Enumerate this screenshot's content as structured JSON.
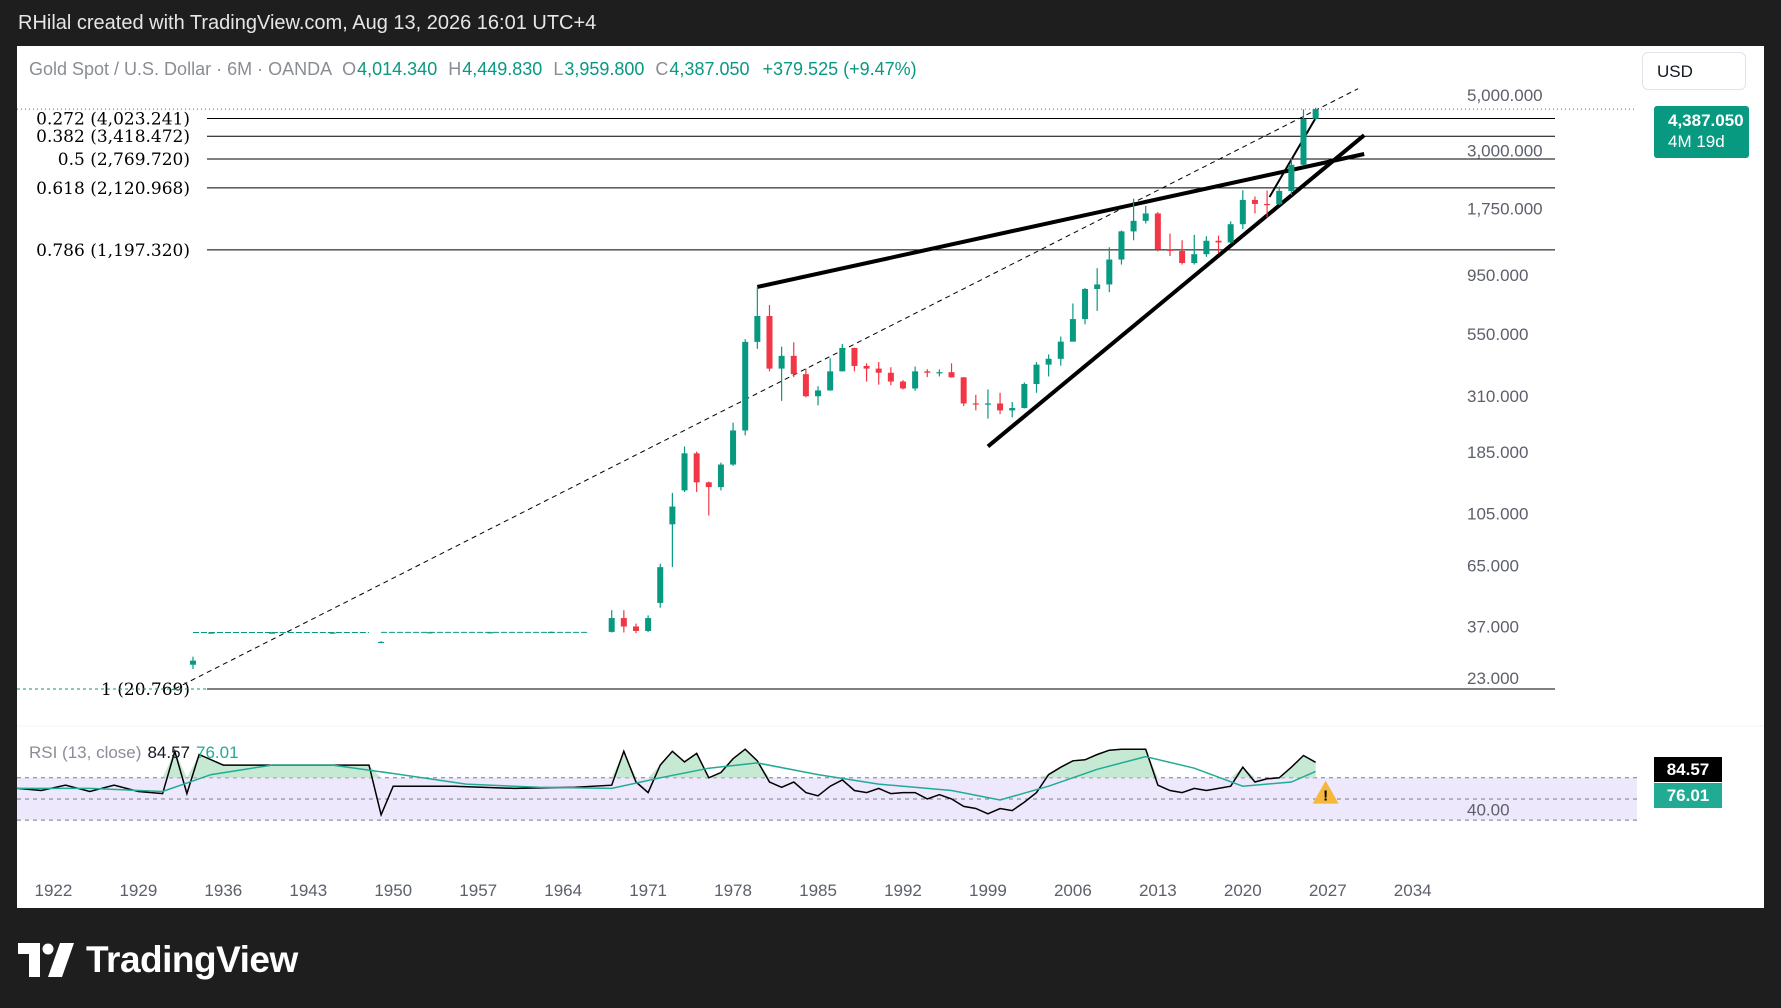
{
  "header": {
    "credit": "RHilal created with TradingView.com, Aug 13, 2026 16:01 UTC+4"
  },
  "brand": {
    "name": "TradingView"
  },
  "legend": {
    "symbol": "Gold Spot / U.S. Dollar · 6M · OANDA",
    "o_label": "O",
    "o_value": "4,014.340",
    "h_label": "H",
    "h_value": "4,449.830",
    "l_label": "L",
    "l_value": "3,959.800",
    "c_label": "C",
    "c_value": "4,387.050",
    "change": "+379.525 (+9.47%)"
  },
  "currency": "USD",
  "price_tag": {
    "price": "4,387.050",
    "countdown": "4M 19d"
  },
  "rsi": {
    "label": "RSI (13, close)",
    "value": "84.57",
    "ma_value": "76.01"
  },
  "colors": {
    "up": "#089981",
    "down": "#f23645",
    "rsi": "#000000",
    "rsi_ma": "#22ab94",
    "rsi_band": "#ede8fb",
    "warning": "#f5b83d"
  },
  "icons": {
    "warning": "warning-icon"
  },
  "chart_data": [
    {
      "type": "candlestick",
      "title": "Gold Spot / U.S. Dollar · 6M · OANDA",
      "y_scale": "log",
      "y_ticks": [
        "23.000",
        "37.000",
        "65.000",
        "105.000",
        "185.000",
        "310.000",
        "550.000",
        "950.000",
        "1,750.000",
        "3,000.000",
        "5,000.000"
      ],
      "y_tick_values": [
        23,
        37,
        65,
        105,
        185,
        310,
        550,
        950,
        1750,
        3000,
        5000
      ],
      "ylim": [
        15,
        5500
      ],
      "x_ticks": [
        "1922",
        "1929",
        "1936",
        "1943",
        "1950",
        "1957",
        "1964",
        "1971",
        "1978",
        "1985",
        "1992",
        "1999",
        "2006",
        "2013",
        "2020",
        "2027",
        "2034"
      ],
      "xlim": [
        1919,
        2036
      ],
      "fib_levels": [
        {
          "ratio": "0.272",
          "price": 4023.241,
          "label": "0.272 (4,023.241)"
        },
        {
          "ratio": "0.382",
          "price": 3418.472,
          "label": "0.382 (3,418.472)"
        },
        {
          "ratio": "0.5",
          "price": 2769.72,
          "label": "0.5 (2,769.720)"
        },
        {
          "ratio": "0.618",
          "price": 2120.968,
          "label": "0.618 (2,120.968)"
        },
        {
          "ratio": "0.786",
          "price": 1197.32,
          "label": "0.786 (1,197.320)"
        },
        {
          "ratio": "1",
          "price": 20.769,
          "label": "1 (20.769)"
        }
      ],
      "trendlines": [
        {
          "name": "upper",
          "from": [
            1980.0,
            850
          ],
          "to": [
            2030.0,
            2900
          ]
        },
        {
          "name": "lower",
          "from": [
            1999.0,
            195
          ],
          "to": [
            2030.0,
            3450
          ]
        },
        {
          "name": "dashed-channel",
          "from": [
            1932.0,
            20.8
          ],
          "to": [
            2029.5,
            5300
          ]
        },
        {
          "name": "short-rally",
          "from": [
            2022.2,
            1950
          ],
          "to": [
            2026.2,
            4200
          ]
        }
      ],
      "current_close": 4387.05,
      "candles": [
        {
          "x": 1932.0,
          "o": 20.7,
          "h": 20.9,
          "l": 20.6,
          "c": 20.8
        },
        {
          "x": 1933.5,
          "o": 26,
          "h": 28,
          "l": 25,
          "c": 27
        },
        {
          "x": 1935.0,
          "o": 34.8,
          "h": 35.1,
          "l": 34.7,
          "c": 35.0
        },
        {
          "x": 1940.0,
          "o": 35.0,
          "h": 35.1,
          "l": 34.9,
          "c": 35.0
        },
        {
          "x": 1945.0,
          "o": 35.0,
          "h": 35.1,
          "l": 34.9,
          "c": 35.0
        },
        {
          "x": 1949.0,
          "o": 32.0,
          "h": 32.3,
          "l": 31.8,
          "c": 32.1
        },
        {
          "x": 1953.0,
          "o": 35.0,
          "h": 35.2,
          "l": 34.9,
          "c": 35.1
        },
        {
          "x": 1958.0,
          "o": 35.0,
          "h": 35.2,
          "l": 34.9,
          "c": 35.1
        },
        {
          "x": 1963.0,
          "o": 35.1,
          "h": 35.3,
          "l": 35.0,
          "c": 35.2
        },
        {
          "x": 1968.0,
          "o": 35.2,
          "h": 43,
          "l": 35.0,
          "c": 40
        },
        {
          "x": 1969.0,
          "o": 40,
          "h": 43,
          "l": 35,
          "c": 37
        },
        {
          "x": 1970.0,
          "o": 37,
          "h": 38,
          "l": 34.8,
          "c": 35.5
        },
        {
          "x": 1971.0,
          "o": 35.5,
          "h": 41,
          "l": 35.2,
          "c": 40
        },
        {
          "x": 1972.0,
          "o": 46,
          "h": 66,
          "l": 44,
          "c": 64
        },
        {
          "x": 1973.0,
          "o": 95,
          "h": 127,
          "l": 64,
          "c": 112
        },
        {
          "x": 1974.0,
          "o": 130,
          "h": 195,
          "l": 128,
          "c": 183
        },
        {
          "x": 1975.0,
          "o": 183,
          "h": 186,
          "l": 128,
          "c": 140
        },
        {
          "x": 1976.0,
          "o": 140,
          "h": 141,
          "l": 103,
          "c": 134
        },
        {
          "x": 1977.0,
          "o": 134,
          "h": 168,
          "l": 130,
          "c": 165
        },
        {
          "x": 1978.0,
          "o": 165,
          "h": 243,
          "l": 163,
          "c": 226
        },
        {
          "x": 1979.0,
          "o": 226,
          "h": 525,
          "l": 216,
          "c": 512
        },
        {
          "x": 1980.0,
          "o": 512,
          "h": 850,
          "l": 480,
          "c": 650
        },
        {
          "x": 1981.0,
          "o": 650,
          "h": 720,
          "l": 390,
          "c": 400
        },
        {
          "x": 1982.0,
          "o": 400,
          "h": 490,
          "l": 297,
          "c": 450
        },
        {
          "x": 1983.0,
          "o": 450,
          "h": 510,
          "l": 370,
          "c": 380
        },
        {
          "x": 1984.0,
          "o": 380,
          "h": 400,
          "l": 307,
          "c": 310
        },
        {
          "x": 1985.0,
          "o": 310,
          "h": 340,
          "l": 285,
          "c": 327
        },
        {
          "x": 1986.0,
          "o": 327,
          "h": 440,
          "l": 326,
          "c": 390
        },
        {
          "x": 1987.0,
          "o": 390,
          "h": 502,
          "l": 390,
          "c": 484
        },
        {
          "x": 1988.0,
          "o": 484,
          "h": 485,
          "l": 390,
          "c": 410
        },
        {
          "x": 1989.0,
          "o": 410,
          "h": 420,
          "l": 355,
          "c": 400
        },
        {
          "x": 1990.0,
          "o": 400,
          "h": 425,
          "l": 345,
          "c": 385
        },
        {
          "x": 1991.0,
          "o": 385,
          "h": 405,
          "l": 343,
          "c": 355
        },
        {
          "x": 1992.0,
          "o": 355,
          "h": 360,
          "l": 330,
          "c": 333
        },
        {
          "x": 1993.0,
          "o": 333,
          "h": 408,
          "l": 326,
          "c": 390
        },
        {
          "x": 1994.0,
          "o": 390,
          "h": 398,
          "l": 370,
          "c": 385
        },
        {
          "x": 1995.0,
          "o": 385,
          "h": 397,
          "l": 372,
          "c": 387
        },
        {
          "x": 1996.0,
          "o": 387,
          "h": 420,
          "l": 368,
          "c": 369
        },
        {
          "x": 1997.0,
          "o": 369,
          "h": 370,
          "l": 283,
          "c": 290
        },
        {
          "x": 1998.0,
          "o": 290,
          "h": 314,
          "l": 272,
          "c": 288
        },
        {
          "x": 1999.0,
          "o": 288,
          "h": 330,
          "l": 252,
          "c": 290
        },
        {
          "x": 2000.0,
          "o": 290,
          "h": 320,
          "l": 263,
          "c": 272
        },
        {
          "x": 2001.0,
          "o": 272,
          "h": 294,
          "l": 255,
          "c": 278
        },
        {
          "x": 2002.0,
          "o": 278,
          "h": 352,
          "l": 277,
          "c": 347
        },
        {
          "x": 2003.0,
          "o": 347,
          "h": 425,
          "l": 320,
          "c": 415
        },
        {
          "x": 2004.0,
          "o": 415,
          "h": 456,
          "l": 372,
          "c": 438
        },
        {
          "x": 2005.0,
          "o": 438,
          "h": 538,
          "l": 411,
          "c": 513
        },
        {
          "x": 2006.0,
          "o": 513,
          "h": 730,
          "l": 540,
          "c": 632
        },
        {
          "x": 2007.0,
          "o": 632,
          "h": 842,
          "l": 602,
          "c": 834
        },
        {
          "x": 2008.0,
          "o": 834,
          "h": 1011,
          "l": 681,
          "c": 870
        },
        {
          "x": 2009.0,
          "o": 870,
          "h": 1226,
          "l": 810,
          "c": 1095
        },
        {
          "x": 2010.0,
          "o": 1095,
          "h": 1431,
          "l": 1045,
          "c": 1420
        },
        {
          "x": 2011.0,
          "o": 1420,
          "h": 1920,
          "l": 1308,
          "c": 1565
        },
        {
          "x": 2012.0,
          "o": 1565,
          "h": 1795,
          "l": 1527,
          "c": 1675
        },
        {
          "x": 2013.0,
          "o": 1675,
          "h": 1696,
          "l": 1180,
          "c": 1205
        },
        {
          "x": 2014.0,
          "o": 1205,
          "h": 1392,
          "l": 1131,
          "c": 1185
        },
        {
          "x": 2015.0,
          "o": 1185,
          "h": 1308,
          "l": 1046,
          "c": 1060
        },
        {
          "x": 2016.0,
          "o": 1060,
          "h": 1375,
          "l": 1046,
          "c": 1150
        },
        {
          "x": 2017.0,
          "o": 1150,
          "h": 1357,
          "l": 1123,
          "c": 1302
        },
        {
          "x": 2018.0,
          "o": 1302,
          "h": 1366,
          "l": 1160,
          "c": 1282
        },
        {
          "x": 2019.0,
          "o": 1282,
          "h": 1557,
          "l": 1266,
          "c": 1517
        },
        {
          "x": 2020.0,
          "o": 1517,
          "h": 2075,
          "l": 1451,
          "c": 1898
        },
        {
          "x": 2021.0,
          "o": 1898,
          "h": 1959,
          "l": 1677,
          "c": 1829
        },
        {
          "x": 2022.0,
          "o": 1829,
          "h": 2070,
          "l": 1614,
          "c": 1824
        },
        {
          "x": 2023.0,
          "o": 1824,
          "h": 2150,
          "l": 1810,
          "c": 2063
        },
        {
          "x": 2024.0,
          "o": 2063,
          "h": 2790,
          "l": 1984,
          "c": 2625
        },
        {
          "x": 2025.0,
          "o": 2625,
          "h": 4380,
          "l": 2610,
          "c": 4014
        },
        {
          "x": 2026.0,
          "o": 4014.34,
          "h": 4449.83,
          "l": 3959.8,
          "c": 4387.05
        }
      ]
    },
    {
      "type": "line",
      "title": "RSI (13, close)",
      "ylim": [
        0,
        100
      ],
      "y_ticks": [
        "40.00"
      ],
      "y_tick_values": [
        40
      ],
      "bands": {
        "upper": 70,
        "middle": 50,
        "lower": 30
      },
      "series": [
        {
          "name": "RSI",
          "x": [
            1919,
            1921,
            1923,
            1925,
            1927,
            1929,
            1931,
            1932,
            1933,
            1934,
            1936,
            1940,
            1945,
            1948,
            1949,
            1950,
            1955,
            1960,
            1965,
            1968,
            1969,
            1970,
            1971,
            1972,
            1973,
            1974,
            1975,
            1976,
            1977,
            1978,
            1979,
            1980,
            1981,
            1982,
            1983,
            1984,
            1985,
            1986,
            1987,
            1988,
            1989,
            1990,
            1991,
            1992,
            1993,
            1994,
            1995,
            1996,
            1997,
            1998,
            1999,
            2000,
            2001,
            2002,
            2003,
            2004,
            2005,
            2006,
            2007,
            2008,
            2009,
            2010,
            2011,
            2012,
            2013,
            2014,
            2015,
            2016,
            2017,
            2018,
            2019,
            2020,
            2021,
            2022,
            2023,
            2024,
            2025,
            2026
          ],
          "values": [
            60,
            58,
            63,
            57,
            63,
            57,
            55,
            95,
            55,
            92,
            82,
            82,
            82,
            82,
            35,
            62,
            62,
            60,
            61,
            63,
            95,
            66,
            56,
            82,
            95,
            85,
            93,
            70,
            75,
            88,
            97,
            86,
            66,
            61,
            66,
            56,
            53,
            62,
            68,
            58,
            56,
            60,
            55,
            56,
            56,
            50,
            54,
            50,
            43,
            41,
            36,
            41,
            39,
            47,
            56,
            73,
            80,
            86,
            87,
            92,
            96,
            97,
            97,
            97,
            63,
            58,
            56,
            60,
            58,
            60,
            62,
            80,
            66,
            69,
            70,
            80,
            91,
            84.57
          ]
        },
        {
          "name": "RSI MA",
          "x": [
            1919,
            1925,
            1931,
            1935,
            1940,
            1945,
            1950,
            1956,
            1962,
            1968,
            1972,
            1976,
            1980,
            1985,
            1990,
            1996,
            2000,
            2004,
            2008,
            2012,
            2016,
            2020,
            2024,
            2026
          ],
          "values": [
            60,
            60,
            57,
            73,
            82,
            82,
            74,
            64,
            61,
            60,
            70,
            79,
            84,
            73,
            64,
            58,
            49,
            62,
            78,
            90,
            79,
            62,
            66,
            76.01
          ]
        }
      ]
    }
  ]
}
